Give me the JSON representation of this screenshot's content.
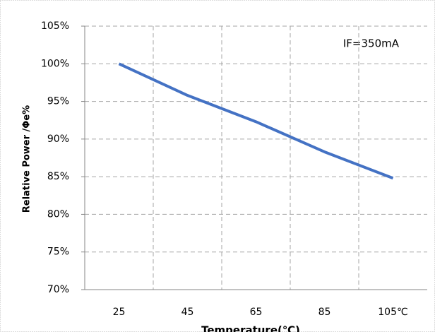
{
  "chart_data": {
    "type": "line",
    "x_label": "Temperature(℃)",
    "y_label": "Relative Power /Φe%",
    "annotation": "IF=350mA",
    "categories": [
      "25",
      "45",
      "65",
      "85",
      "105℃"
    ],
    "series": [
      {
        "name": "Relative Power",
        "color": "#4472c4",
        "values": [
          100,
          95.8,
          92.3,
          88.3,
          84.8
        ]
      }
    ],
    "ylim": [
      70,
      105
    ],
    "yticks": [
      {
        "value": 70,
        "label": "70%"
      },
      {
        "value": 75,
        "label": "75%"
      },
      {
        "value": 80,
        "label": "80%"
      },
      {
        "value": 85,
        "label": "85%"
      },
      {
        "value": 90,
        "label": "90%"
      },
      {
        "value": 95,
        "label": "95%"
      },
      {
        "value": 100,
        "label": "100%"
      },
      {
        "value": 105,
        "label": "105%"
      }
    ],
    "grid": true
  }
}
